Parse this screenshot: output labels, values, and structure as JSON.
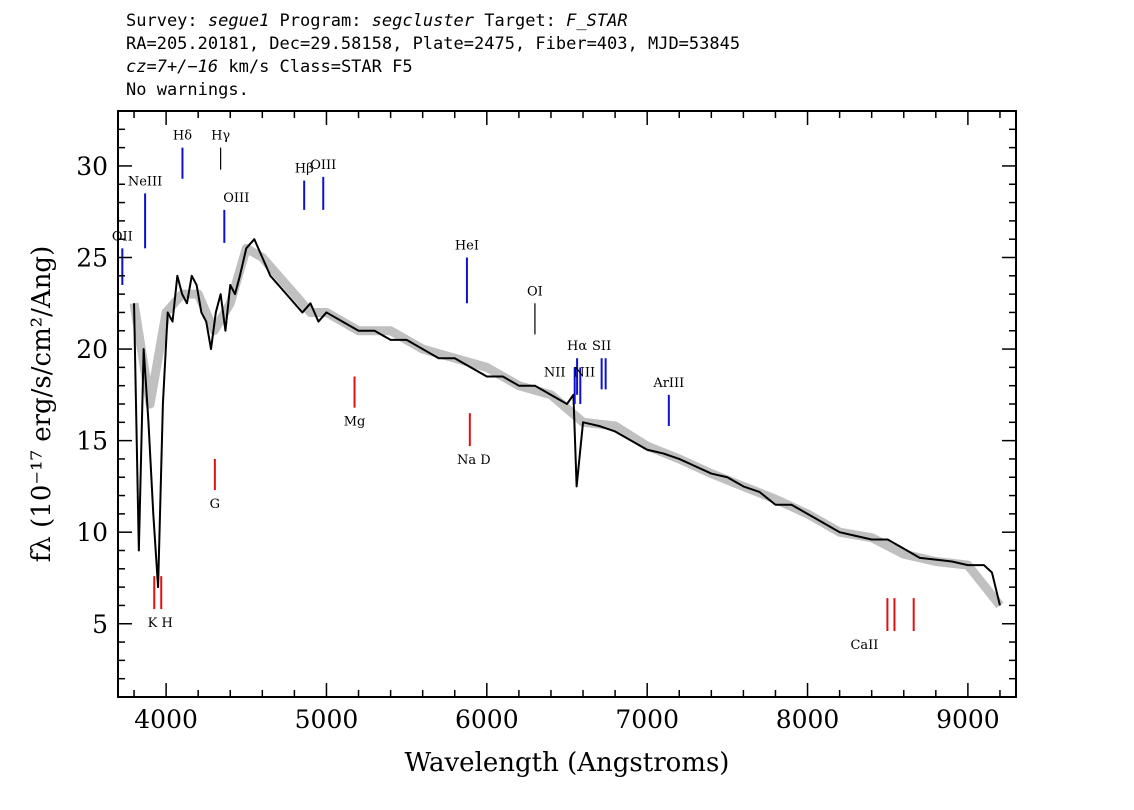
{
  "header": {
    "line1": {
      "survey_label": "Survey: ",
      "survey": "segue1",
      "program_label": " Program: ",
      "program": "segcluster",
      "target_label": " Target: ",
      "target": "F_STAR"
    },
    "line2": "RA=205.20181, Dec=29.58158, Plate=2475, Fiber=403, MJD=53845",
    "line3": {
      "cz": "cz=7+/−16",
      "rest": " km/s Class=STAR F5"
    },
    "line4": "No warnings."
  },
  "chart_data": {
    "type": "line",
    "xlabel": "Wavelength (Angstroms)",
    "ylabel": "fλ (10⁻¹⁷ erg/s/cm²/Ang)",
    "xlim": [
      3700,
      9300
    ],
    "ylim": [
      1,
      33
    ],
    "x_ticks": [
      4000,
      5000,
      6000,
      7000,
      8000,
      9000
    ],
    "y_ticks": [
      5,
      10,
      15,
      20,
      25,
      30
    ],
    "grid": false,
    "series": [
      {
        "role": "flux",
        "color": "#000000",
        "x": [
          3800,
          3830,
          3860,
          3890,
          3920,
          3950,
          3980,
          4010,
          4040,
          4070,
          4100,
          4130,
          4160,
          4190,
          4220,
          4250,
          4280,
          4310,
          4340,
          4370,
          4400,
          4430,
          4460,
          4500,
          4550,
          4600,
          4650,
          4700,
          4750,
          4800,
          4850,
          4900,
          4950,
          5000,
          5100,
          5200,
          5300,
          5400,
          5500,
          5600,
          5700,
          5800,
          5900,
          6000,
          6100,
          6200,
          6300,
          6400,
          6500,
          6540,
          6560,
          6600,
          6700,
          6800,
          6900,
          7000,
          7100,
          7200,
          7300,
          7400,
          7500,
          7600,
          7700,
          7800,
          7900,
          8000,
          8100,
          8200,
          8300,
          8400,
          8500,
          8600,
          8700,
          8800,
          8900,
          9000,
          9100,
          9150,
          9200
        ],
        "y": [
          22.5,
          9,
          20,
          16,
          11,
          7,
          17,
          22,
          21.5,
          24,
          23,
          22.5,
          24,
          23.5,
          22,
          21.5,
          20,
          22,
          23,
          21,
          23.5,
          23,
          24,
          25.5,
          26,
          25,
          24,
          23.5,
          23,
          22.5,
          22,
          22.5,
          21.5,
          22,
          21.5,
          21,
          21,
          20.5,
          20.5,
          20,
          19.5,
          19.5,
          19,
          18.5,
          18.5,
          18,
          18,
          17.5,
          17,
          17.5,
          12.5,
          16,
          15.8,
          15.5,
          15,
          14.5,
          14.3,
          14,
          13.6,
          13.2,
          13,
          12.5,
          12.2,
          11.5,
          11.5,
          11,
          10.5,
          10,
          9.8,
          9.6,
          9.6,
          9.1,
          8.6,
          8.5,
          8.4,
          8.2,
          8.2,
          7.8,
          6
        ]
      },
      {
        "role": "noise",
        "color": "#c0c0c0",
        "x": [
          3800,
          3900,
          4000,
          4100,
          4200,
          4300,
          4400,
          4500,
          4600,
          4700,
          4800,
          4900,
          5000,
          5200,
          5400,
          5600,
          5800,
          6000,
          6200,
          6400,
          6600,
          6800,
          7000,
          7200,
          7400,
          7600,
          7800,
          8000,
          8200,
          8400,
          8600,
          8800,
          9000,
          9200
        ],
        "y": [
          22.5,
          17,
          22,
          23,
          23,
          21,
          22.5,
          25.5,
          25,
          24,
          23,
          22,
          22,
          21,
          21,
          20,
          19.5,
          19,
          18,
          17.5,
          16,
          15.8,
          14.7,
          14,
          13.2,
          12.5,
          11.8,
          11,
          10,
          9.7,
          8.8,
          8.4,
          8.2,
          6
        ]
      }
    ],
    "lines": [
      {
        "label": "OII",
        "wavelength": 3727,
        "color": "blue"
      },
      {
        "label": "NeIII",
        "wavelength": 3869,
        "color": "blue"
      },
      {
        "label": "Hδ",
        "wavelength": 4102,
        "color": "blue"
      },
      {
        "label": "Hγ",
        "wavelength": 4340,
        "color": "black"
      },
      {
        "label": "OIII",
        "wavelength": 4363,
        "color": "blue"
      },
      {
        "label": "Hβ",
        "wavelength": 4861,
        "color": "blue"
      },
      {
        "label": "OIII",
        "wavelength": 4980,
        "color": "blue"
      },
      {
        "label": "HeI",
        "wavelength": 5876,
        "color": "blue"
      },
      {
        "label": "OI",
        "wavelength": 6300,
        "color": "black"
      },
      {
        "label": "NII",
        "wavelength": 6548,
        "color": "blue"
      },
      {
        "label": "Hα",
        "wavelength": 6563,
        "color": "blue"
      },
      {
        "label": "NII",
        "wavelength": 6583,
        "color": "blue"
      },
      {
        "label": "SII",
        "wavelength": 6716,
        "color": "blue"
      },
      {
        "label": "ArIII",
        "wavelength": 7135,
        "color": "blue"
      },
      {
        "label": "K H",
        "wavelength": 3951,
        "color": "red"
      },
      {
        "label": "G",
        "wavelength": 4304,
        "color": "red"
      },
      {
        "label": "Mg",
        "wavelength": 5175,
        "color": "red"
      },
      {
        "label": "Na D",
        "wavelength": 5894,
        "color": "red"
      },
      {
        "label": "CaII",
        "wavelength": 8542,
        "color": "red"
      }
    ]
  }
}
